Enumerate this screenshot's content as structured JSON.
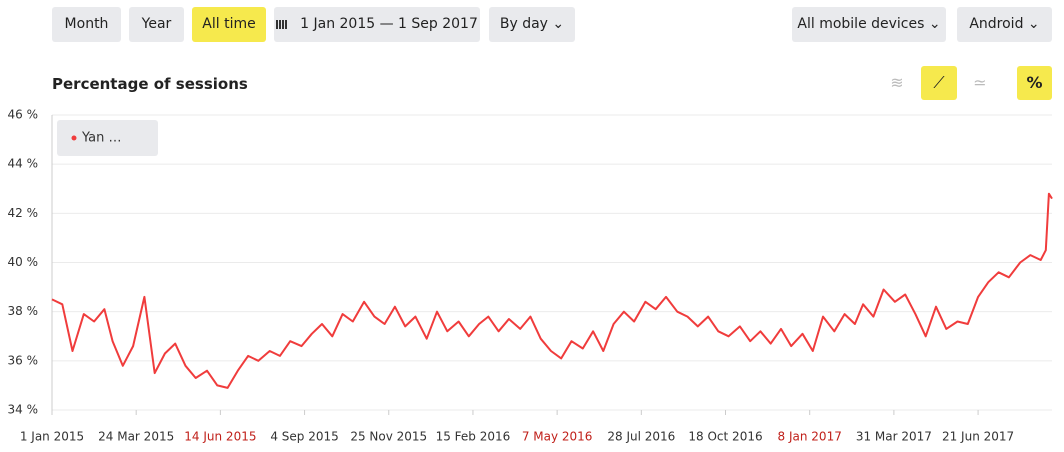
{
  "toolbar": {
    "period_buttons": [
      "Month",
      "Year",
      "All time"
    ],
    "date_range": "1 Jan 2015 — 1 Sep 2017",
    "grouping": "By day",
    "device_filter": "All mobile devices",
    "os_filter": "Android"
  },
  "chart_data": {
    "type": "line",
    "title": "Percentage of sessions",
    "x": [
      "2015-01-01",
      "2015-01-11",
      "2015-01-21",
      "2015-02-01",
      "2015-02-11",
      "2015-02-21",
      "2015-03-01",
      "2015-03-11",
      "2015-03-21",
      "2015-04-01",
      "2015-04-11",
      "2015-04-21",
      "2015-05-01",
      "2015-05-11",
      "2015-05-21",
      "2015-06-01",
      "2015-06-11",
      "2015-06-21",
      "2015-07-01",
      "2015-07-11",
      "2015-07-21",
      "2015-08-01",
      "2015-08-11",
      "2015-08-21",
      "2015-09-01",
      "2015-09-11",
      "2015-09-21",
      "2015-10-01",
      "2015-10-11",
      "2015-10-21",
      "2015-11-01",
      "2015-11-11",
      "2015-11-21",
      "2015-12-01",
      "2015-12-11",
      "2015-12-21",
      "2016-01-01",
      "2016-01-11",
      "2016-01-21",
      "2016-02-01",
      "2016-02-11",
      "2016-02-21",
      "2016-03-01",
      "2016-03-11",
      "2016-03-21",
      "2016-04-01",
      "2016-04-11",
      "2016-04-21",
      "2016-05-01",
      "2016-05-11",
      "2016-05-21",
      "2016-06-01",
      "2016-06-11",
      "2016-06-21",
      "2016-07-01",
      "2016-07-11",
      "2016-07-21",
      "2016-08-01",
      "2016-08-11",
      "2016-08-21",
      "2016-09-01",
      "2016-09-11",
      "2016-09-21",
      "2016-10-01",
      "2016-10-11",
      "2016-10-21",
      "2016-11-01",
      "2016-11-11",
      "2016-11-21",
      "2016-12-01",
      "2016-12-11",
      "2016-12-21",
      "2017-01-01",
      "2017-01-11",
      "2017-01-21",
      "2017-02-01",
      "2017-02-11",
      "2017-02-21",
      "2017-03-01",
      "2017-03-11",
      "2017-03-21",
      "2017-04-01",
      "2017-04-11",
      "2017-04-21",
      "2017-05-01",
      "2017-05-11",
      "2017-05-21",
      "2017-06-01",
      "2017-06-11",
      "2017-06-21",
      "2017-07-01",
      "2017-07-11",
      "2017-07-21",
      "2017-08-01",
      "2017-08-11",
      "2017-08-21",
      "2017-08-26",
      "2017-08-29",
      "2017-09-01"
    ],
    "series": [
      {
        "name": "Yan …",
        "color": "#f03c3c",
        "values": [
          38.5,
          38.3,
          36.4,
          37.9,
          37.6,
          38.1,
          36.8,
          35.8,
          36.6,
          38.6,
          35.5,
          36.3,
          36.7,
          35.8,
          35.3,
          35.6,
          35.0,
          34.9,
          35.6,
          36.2,
          36.0,
          36.4,
          36.2,
          36.8,
          36.6,
          37.1,
          37.5,
          37.0,
          37.9,
          37.6,
          38.4,
          37.8,
          37.5,
          38.2,
          37.4,
          37.8,
          36.9,
          38.0,
          37.2,
          37.6,
          37.0,
          37.5,
          37.8,
          37.2,
          37.7,
          37.3,
          37.8,
          36.9,
          36.4,
          36.1,
          36.8,
          36.5,
          37.2,
          36.4,
          37.5,
          38.0,
          37.6,
          38.4,
          38.1,
          38.6,
          38.0,
          37.8,
          37.4,
          37.8,
          37.2,
          37.0,
          37.4,
          36.8,
          37.2,
          36.7,
          37.3,
          36.6,
          37.1,
          36.4,
          37.8,
          37.2,
          37.9,
          37.5,
          38.3,
          37.8,
          38.9,
          38.4,
          38.7,
          37.9,
          37.0,
          38.2,
          37.3,
          37.6,
          37.5,
          38.6,
          39.2,
          39.6,
          39.4,
          40.0,
          40.3,
          40.1,
          40.5,
          42.8,
          42.6
        ]
      }
    ],
    "xlim": [
      "2015-01-01",
      "2017-09-01"
    ],
    "xticks": [
      {
        "value": "2015-01-01",
        "label": "1 Jan 2015"
      },
      {
        "value": "2015-03-24",
        "label": "24 Mar 2015"
      },
      {
        "value": "2015-06-14",
        "label": "14 Jun 2015"
      },
      {
        "value": "2015-09-04",
        "label": "4 Sep 2015"
      },
      {
        "value": "2015-11-25",
        "label": "25 Nov 2015"
      },
      {
        "value": "2016-02-15",
        "label": "15 Feb 2016"
      },
      {
        "value": "2016-05-07",
        "label": "7 May 2016"
      },
      {
        "value": "2016-07-28",
        "label": "28 Jul 2016"
      },
      {
        "value": "2016-10-18",
        "label": "18 Oct 2016"
      },
      {
        "value": "2017-01-08",
        "label": "8 Jan 2017"
      },
      {
        "value": "2017-03-31",
        "label": "31 Mar 2017"
      },
      {
        "value": "2017-06-21",
        "label": "21 Jun 2017"
      }
    ],
    "ylim": [
      34,
      46
    ],
    "yticks": [
      {
        "value": 34,
        "label": "34 %"
      },
      {
        "value": 36,
        "label": "36 %"
      },
      {
        "value": 38,
        "label": "38 %"
      },
      {
        "value": 40,
        "label": "40 %"
      },
      {
        "value": 42,
        "label": "42 %"
      },
      {
        "value": 44,
        "label": "44 %"
      },
      {
        "value": 46,
        "label": "46 %"
      }
    ],
    "grid": true
  }
}
